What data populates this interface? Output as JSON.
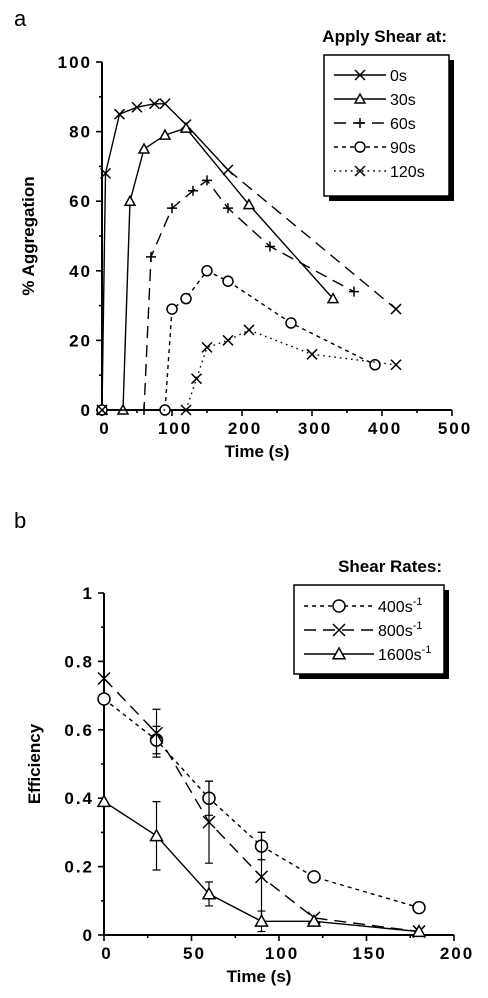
{
  "chart_data": [
    {
      "panel": "a",
      "type": "line",
      "ylabel": "% Aggregation",
      "xlabel": "Time (s)",
      "legend_title": "Apply Shear at:",
      "legend_placement": "top-right",
      "xlim": [
        0,
        500
      ],
      "ylim": [
        0,
        100
      ],
      "xticks": [
        0,
        100,
        200,
        300,
        400,
        500
      ],
      "yticks": [
        0,
        20,
        40,
        60,
        80,
        100
      ],
      "xtick_labels": [
        "0",
        "100",
        "200",
        "300",
        "400",
        "500"
      ],
      "ytick_labels": [
        "0",
        "20",
        "40",
        "60",
        "80",
        "100"
      ],
      "grid": false,
      "series": [
        {
          "name": "0s",
          "marker": "x",
          "dash": "solid",
          "x": [
            0,
            5,
            25,
            50,
            75,
            90,
            120,
            180
          ],
          "y": [
            0,
            68,
            85,
            87,
            88,
            88,
            82,
            69
          ]
        },
        {
          "name": "30s",
          "marker": "triangle",
          "dash": "solid",
          "x": [
            0,
            30,
            40,
            60,
            90,
            120,
            210,
            330
          ],
          "y": [
            0,
            0,
            60,
            75,
            79,
            81,
            59,
            32
          ]
        },
        {
          "name": "60s",
          "marker": "plus",
          "dash": "longdash",
          "x": [
            0,
            60,
            70,
            100,
            130,
            150,
            180,
            240,
            360
          ],
          "y": [
            0,
            0,
            44,
            58,
            63,
            66,
            58,
            47,
            34
          ]
        },
        {
          "name": "90s",
          "marker": "circle",
          "dash": "shortdash",
          "x": [
            0,
            90,
            100,
            120,
            150,
            180,
            270,
            390
          ],
          "y": [
            0,
            0,
            29,
            32,
            40,
            37,
            25,
            13
          ]
        },
        {
          "name": "120s",
          "marker": "x",
          "dash": "dotted",
          "x": [
            0,
            120,
            135,
            150,
            180,
            210,
            300,
            420
          ],
          "y": [
            0,
            0,
            9,
            18,
            20,
            23,
            16,
            13
          ]
        }
      ],
      "extra_segments": [
        {
          "from_series": "0s",
          "x": [
            180,
            420
          ],
          "y": [
            69,
            29
          ],
          "dash": "longdash"
        }
      ]
    },
    {
      "panel": "b",
      "type": "line",
      "ylabel": "Efficiency",
      "xlabel": "Time (s)",
      "legend_title": "Shear Rates:",
      "legend_placement": "top-right",
      "xlim": [
        0,
        200
      ],
      "ylim": [
        0,
        1
      ],
      "xticks": [
        0,
        50,
        100,
        150,
        200
      ],
      "yticks": [
        0,
        0.2,
        0.4,
        0.6,
        0.8,
        1
      ],
      "xtick_labels": [
        "0",
        "50",
        "100",
        "150",
        "200"
      ],
      "ytick_labels": [
        "0",
        "0.2",
        "0.4",
        "0.6",
        "0.8",
        "1"
      ],
      "grid": false,
      "series": [
        {
          "name": "400s",
          "name_sup": "-1",
          "marker": "circle",
          "dash": "shortdash",
          "x": [
            0,
            30,
            60,
            90,
            120,
            180
          ],
          "y": [
            0.69,
            0.57,
            0.4,
            0.26,
            0.17,
            0.08
          ],
          "err": [
            0,
            0.04,
            0.05,
            0.04,
            0,
            0
          ]
        },
        {
          "name": "800s",
          "name_sup": "-1",
          "marker": "x",
          "dash": "longdash",
          "x": [
            0,
            30,
            60,
            90,
            120,
            180
          ],
          "y": [
            0.75,
            0.59,
            0.33,
            0.17,
            0.05,
            0.01
          ],
          "err": [
            0,
            0.07,
            0.12,
            0.13,
            0,
            0
          ]
        },
        {
          "name": "1600s",
          "name_sup": "-1",
          "marker": "triangle",
          "dash": "solid",
          "x": [
            0,
            30,
            60,
            90,
            120,
            180
          ],
          "y": [
            0.39,
            0.29,
            0.12,
            0.04,
            0.04,
            0.01
          ],
          "err": [
            0,
            0.1,
            0.035,
            0.03,
            0,
            0
          ]
        }
      ]
    }
  ]
}
